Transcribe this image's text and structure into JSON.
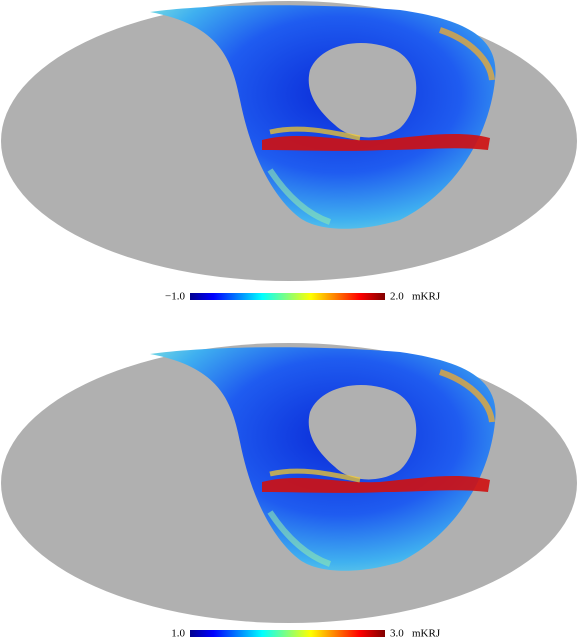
{
  "panels": [
    {
      "colorbar": {
        "min_label": "−1.0",
        "max_label": "2.0",
        "unit": "mKRJ"
      }
    },
    {
      "colorbar": {
        "min_label": "1.0",
        "max_label": "3.0",
        "unit": "mKRJ"
      }
    }
  ]
}
